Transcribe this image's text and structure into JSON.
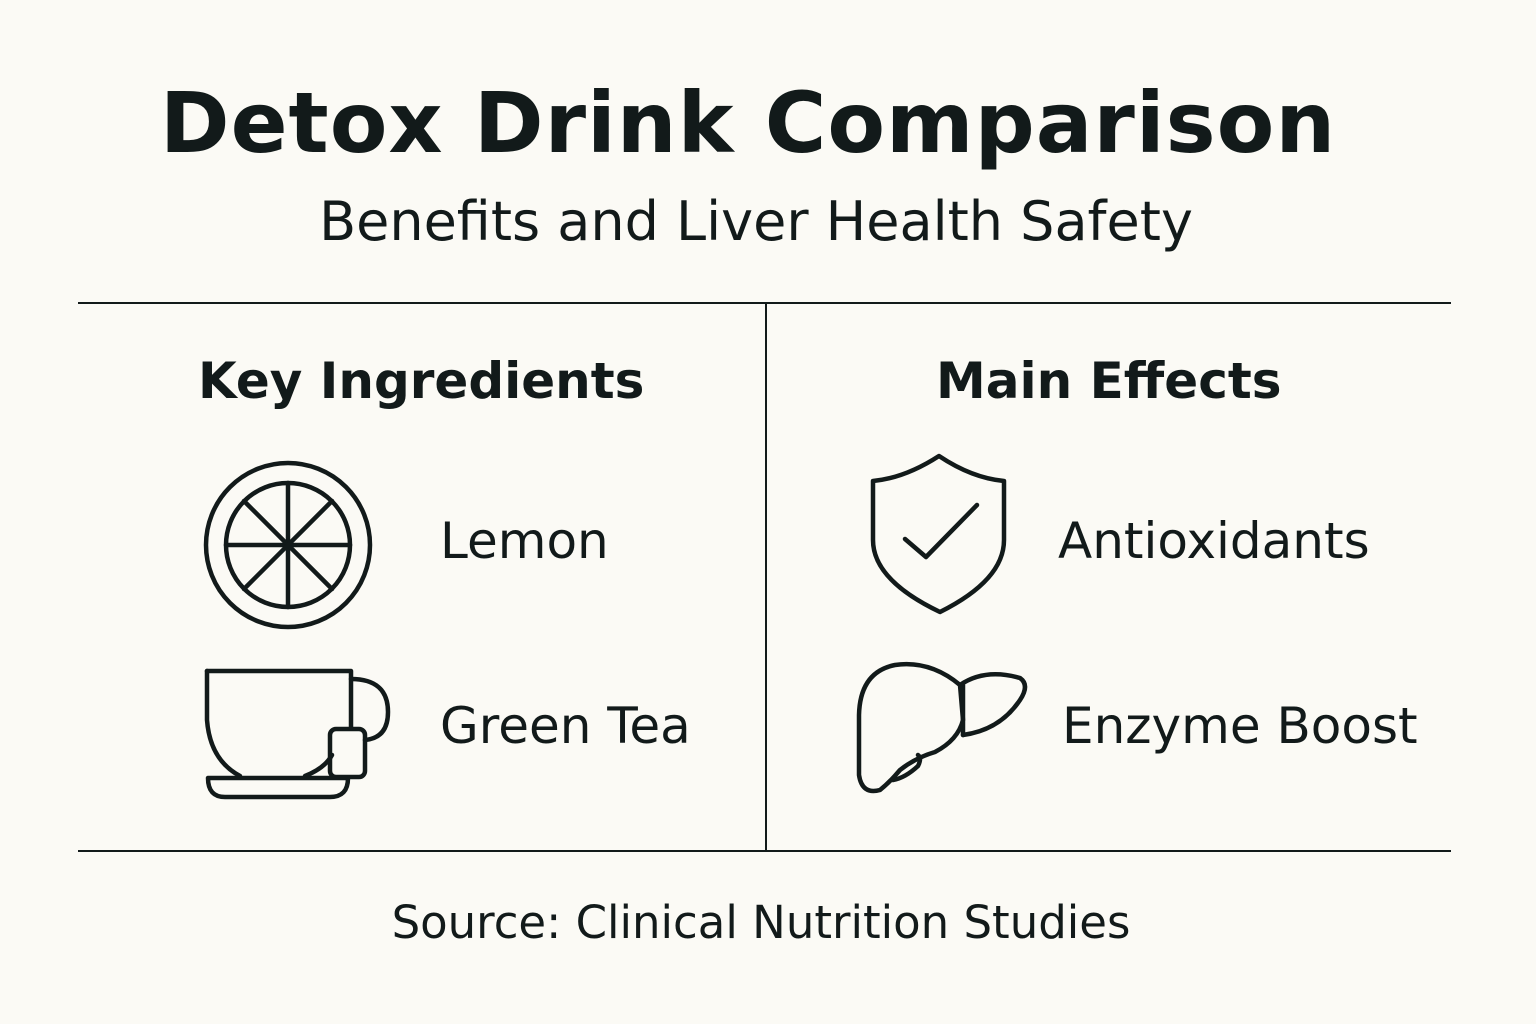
{
  "header": {
    "title": "Detox Drink Comparison",
    "subtitle": "Benefits and Liver Health Safety"
  },
  "left_column": {
    "heading": "Key Ingredients",
    "items": [
      {
        "label": "Lemon",
        "icon": "lemon-slice-icon"
      },
      {
        "label": "Green Tea",
        "icon": "tea-cup-icon"
      }
    ]
  },
  "right_column": {
    "heading": "Main Effects",
    "items": [
      {
        "label": "Antioxidants",
        "icon": "shield-check-icon"
      },
      {
        "label": "Enzyme Boost",
        "icon": "liver-icon"
      }
    ]
  },
  "footer": {
    "source": "Source: Clinical Nutrition Studies"
  },
  "colors": {
    "background": "#fbfaf5",
    "ink": "#121a1a"
  }
}
